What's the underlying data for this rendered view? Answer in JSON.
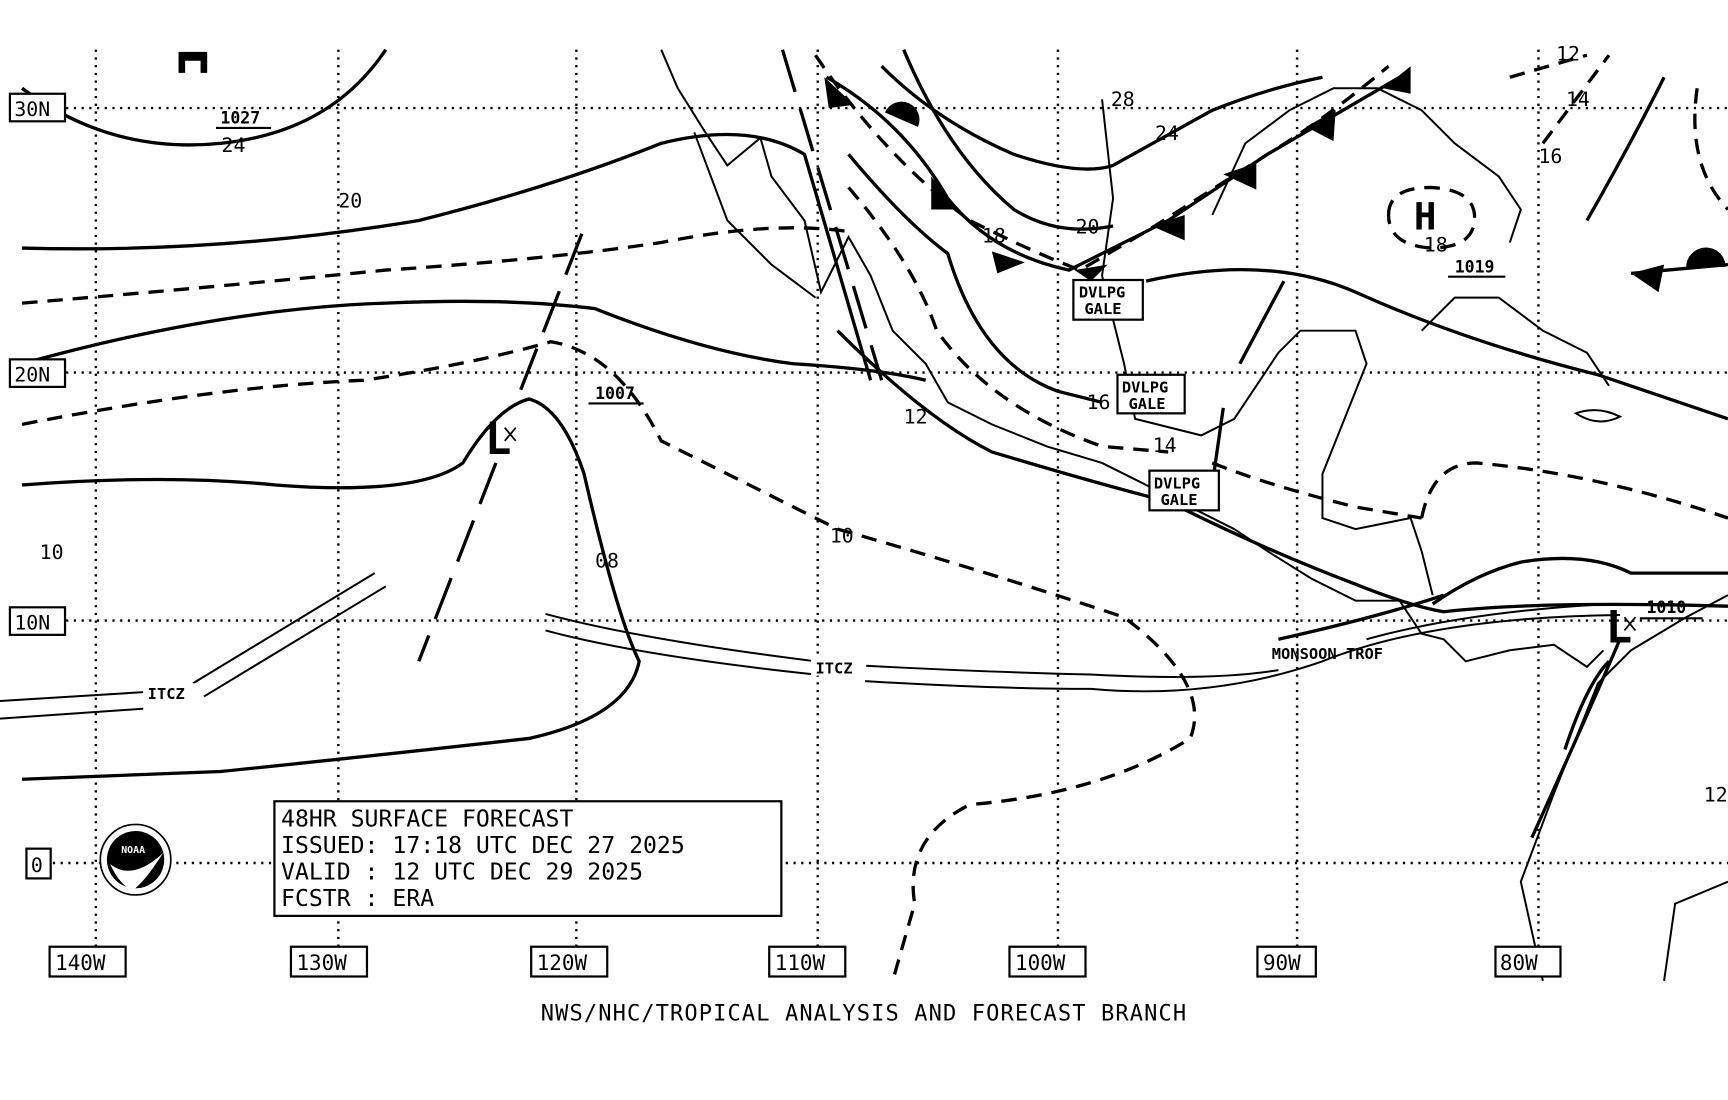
{
  "title": "48HR SURFACE FORECAST",
  "issued": "ISSUED: 17:18 UTC DEC 27 2025",
  "valid": "VALID : 12 UTC DEC 29 2025",
  "forecaster": "FCSTR : ERA",
  "footer": "NWS/NHC/TROPICAL ANALYSIS AND FORECAST BRANCH",
  "logo": "NOAA",
  "latitude_labels": [
    "30N",
    "20N",
    "10N",
    "0"
  ],
  "longitude_labels": [
    "140W",
    "130W",
    "120W",
    "110W",
    "100W",
    "90W",
    "80W"
  ],
  "pressure_centers": [
    {
      "type": "L",
      "value": "1007"
    },
    {
      "type": "L",
      "value": "1010"
    },
    {
      "type": "H",
      "value": "1019"
    },
    {
      "type": "H",
      "value": "1027"
    }
  ],
  "isobar_labels": [
    "24",
    "20",
    "28",
    "24",
    "18",
    "20",
    "16",
    "14",
    "12",
    "10",
    "08",
    "10",
    "16",
    "14",
    "12",
    "18",
    "12"
  ],
  "features": {
    "itcz": "ITCZ",
    "monsoon": "MONSOON TROF",
    "gale": [
      "DVLPG",
      "GALE"
    ]
  }
}
